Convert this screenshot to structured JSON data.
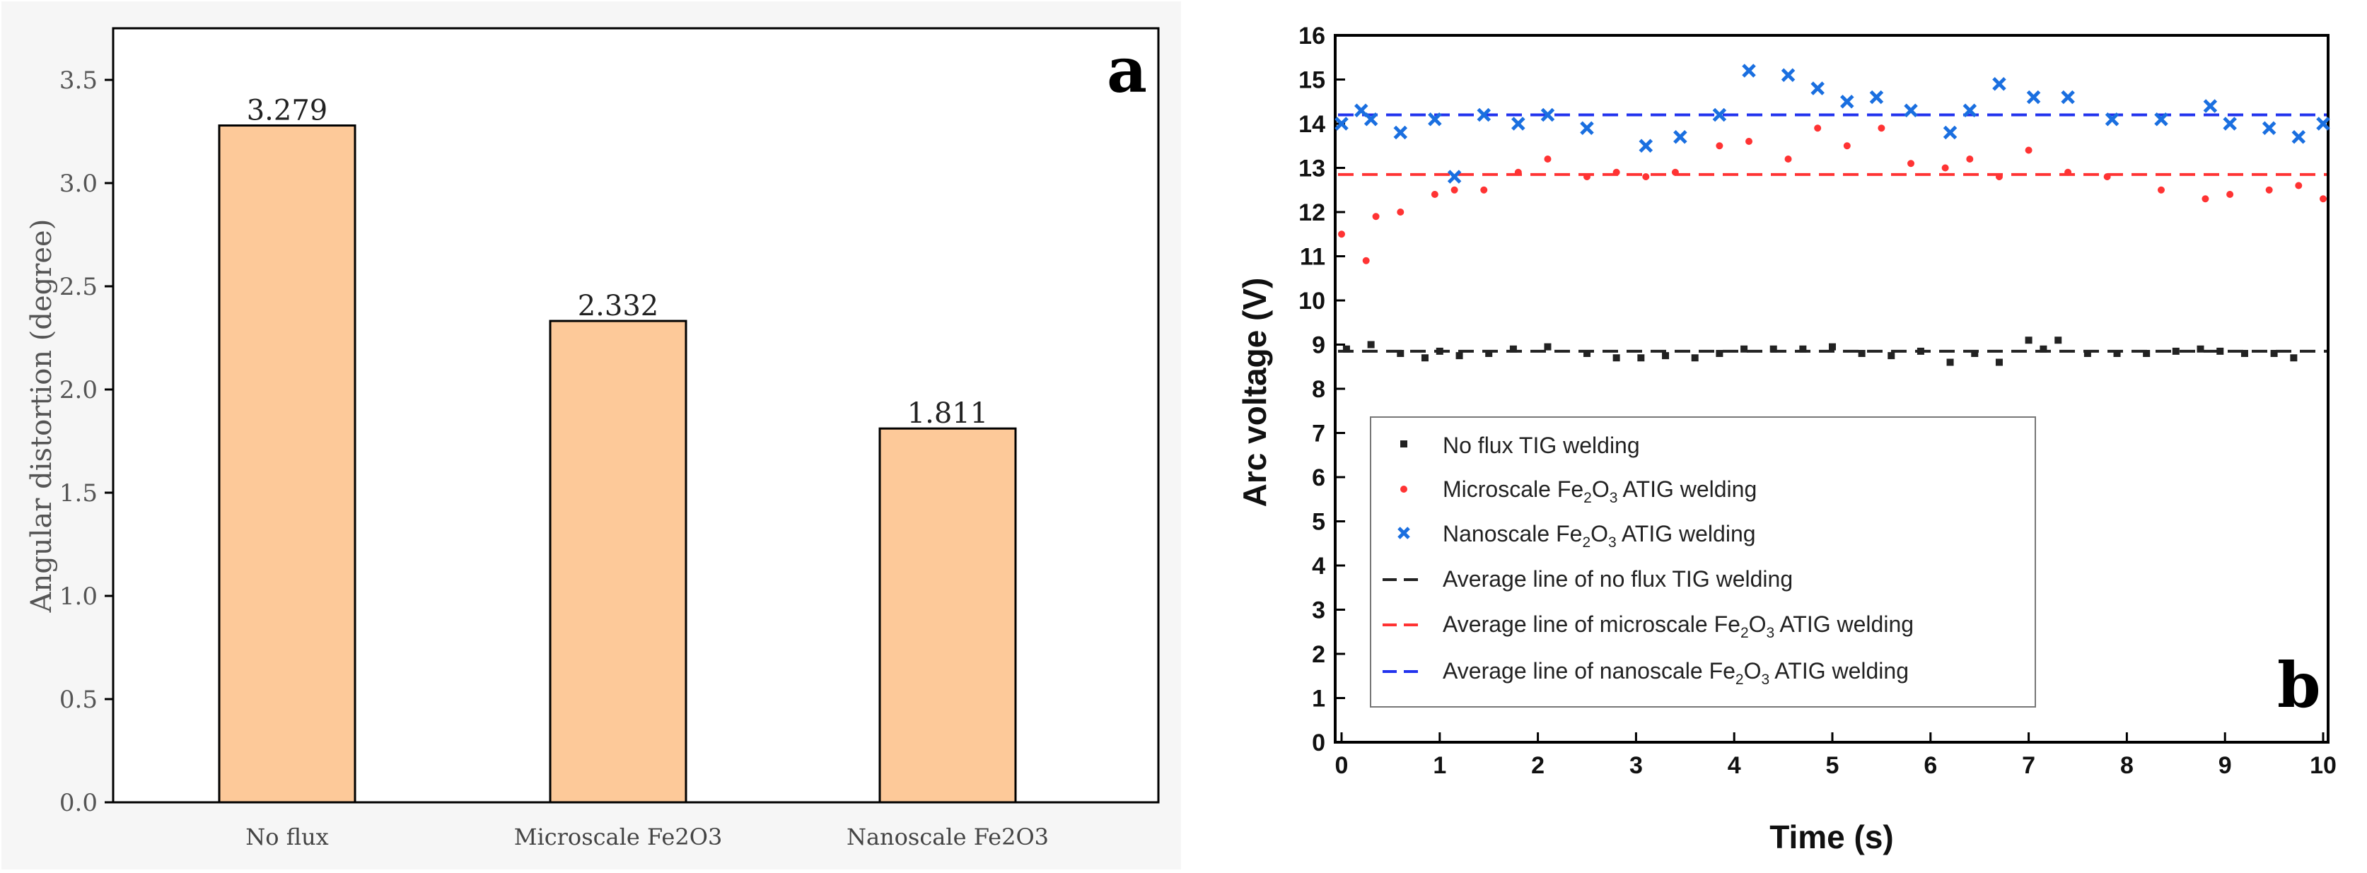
{
  "chart_data": [
    {
      "panel": "a",
      "type": "bar",
      "title": "",
      "xlabel": "",
      "ylabel": "Angular distortion (degree)",
      "categories": [
        "No flux",
        "Microscale Fe2O3",
        "Nanoscale Fe2O3"
      ],
      "values": [
        3.279,
        2.332,
        1.811
      ],
      "value_labels": [
        "3.279",
        "2.332",
        "1.811"
      ],
      "ylim": [
        0,
        3.75
      ],
      "yticks": [
        0.0,
        0.5,
        1.0,
        1.5,
        2.0,
        2.5,
        3.0,
        3.5
      ],
      "ytick_labels": [
        "0.0",
        "0.5",
        "1.0",
        "1.5",
        "2.0",
        "2.5",
        "3.0",
        "3.5"
      ],
      "grid": false,
      "bar_color": "#fdc999",
      "panel_label": "a"
    },
    {
      "panel": "b",
      "type": "scatter",
      "xlabel": "Time (s)",
      "ylabel": "Arc voltage (V)",
      "xlim": [
        0,
        10
      ],
      "ylim": [
        0,
        16
      ],
      "xticks": [
        0,
        1,
        2,
        3,
        4,
        5,
        6,
        7,
        8,
        9,
        10
      ],
      "yticks": [
        0,
        1,
        2,
        3,
        4,
        5,
        6,
        7,
        8,
        9,
        10,
        11,
        12,
        13,
        14,
        15,
        16
      ],
      "panel_label": "b",
      "legend_position": "lower-left",
      "series": [
        {
          "name": "No flux TIG welding",
          "marker": "square",
          "color": "#222222",
          "x": [
            0.05,
            0.3,
            0.6,
            0.85,
            1.0,
            1.2,
            1.5,
            1.75,
            2.1,
            2.5,
            2.8,
            3.05,
            3.3,
            3.6,
            3.85,
            4.1,
            4.4,
            4.7,
            5.0,
            5.3,
            5.6,
            5.9,
            6.2,
            6.45,
            6.7,
            7.0,
            7.15,
            7.3,
            7.6,
            7.9,
            8.2,
            8.5,
            8.75,
            8.95,
            9.2,
            9.5,
            9.7
          ],
          "y": [
            8.9,
            9.0,
            8.8,
            8.7,
            8.85,
            8.75,
            8.8,
            8.9,
            8.95,
            8.8,
            8.7,
            8.7,
            8.75,
            8.7,
            8.8,
            8.9,
            8.9,
            8.9,
            8.95,
            8.8,
            8.75,
            8.85,
            8.6,
            8.8,
            8.6,
            9.1,
            8.9,
            9.1,
            8.8,
            8.8,
            8.8,
            8.85,
            8.9,
            8.85,
            8.8,
            8.8,
            8.7
          ]
        },
        {
          "name": "Microscale Fe2O3 ATIG welding",
          "name_main": "Microscale Fe",
          "name_sub": "2",
          "name_mid": "O",
          "name_sub2": "3",
          "name_tail": " ATIG welding",
          "marker": "circle",
          "color": "#ff3333",
          "x": [
            0.0,
            0.25,
            0.35,
            0.6,
            0.95,
            1.15,
            1.45,
            1.8,
            2.1,
            2.5,
            2.8,
            3.1,
            3.4,
            3.85,
            4.15,
            4.55,
            4.85,
            5.15,
            5.5,
            5.8,
            6.15,
            6.4,
            6.7,
            7.0,
            7.4,
            7.8,
            8.35,
            8.8,
            9.05,
            9.45,
            9.75,
            10.0
          ],
          "y": [
            11.5,
            10.9,
            11.9,
            12.0,
            12.4,
            12.5,
            12.5,
            12.9,
            13.2,
            12.8,
            12.9,
            12.8,
            12.9,
            13.5,
            13.6,
            13.2,
            13.9,
            13.5,
            13.9,
            13.1,
            13.0,
            13.2,
            12.8,
            13.4,
            12.9,
            12.8,
            12.5,
            12.3,
            12.4,
            12.5,
            12.6,
            12.3
          ]
        },
        {
          "name": "Nanoscale Fe2O3 ATIG welding",
          "name_main": "Nanoscale Fe",
          "name_sub": "2",
          "name_mid": "O",
          "name_sub2": "3",
          "name_tail": " ATIG welding",
          "marker": "x",
          "color": "#1a6fe0",
          "x": [
            0.0,
            0.2,
            0.3,
            0.6,
            0.95,
            1.15,
            1.45,
            1.8,
            2.1,
            2.5,
            3.1,
            3.45,
            3.85,
            4.15,
            4.55,
            4.85,
            5.15,
            5.45,
            5.8,
            6.2,
            6.4,
            6.7,
            7.05,
            7.4,
            7.85,
            8.35,
            8.85,
            9.05,
            9.45,
            9.75,
            10.0
          ],
          "y": [
            14.0,
            14.3,
            14.1,
            13.8,
            14.1,
            12.8,
            14.2,
            14.0,
            14.2,
            13.9,
            13.5,
            13.7,
            14.2,
            15.2,
            15.1,
            14.8,
            14.5,
            14.6,
            14.3,
            13.8,
            14.3,
            14.9,
            14.6,
            14.6,
            14.1,
            14.1,
            14.4,
            14.0,
            13.9,
            13.7,
            14.0
          ]
        }
      ],
      "average_lines": [
        {
          "name": "Average line of no flux TIG welding",
          "value": 8.85,
          "color": "#222222"
        },
        {
          "name": "Average line of microscale Fe2O3 ATIG welding",
          "name_main": "Average line of microscale Fe",
          "name_tail": " ATIG welding",
          "value": 12.85,
          "color": "#ff3333"
        },
        {
          "name": "Average line of nanoscale Fe2O3 ATIG welding",
          "name_main": "Average line of nanoscale Fe",
          "name_tail": " ATIG welding",
          "value": 14.2,
          "color": "#2233ee"
        }
      ]
    }
  ]
}
